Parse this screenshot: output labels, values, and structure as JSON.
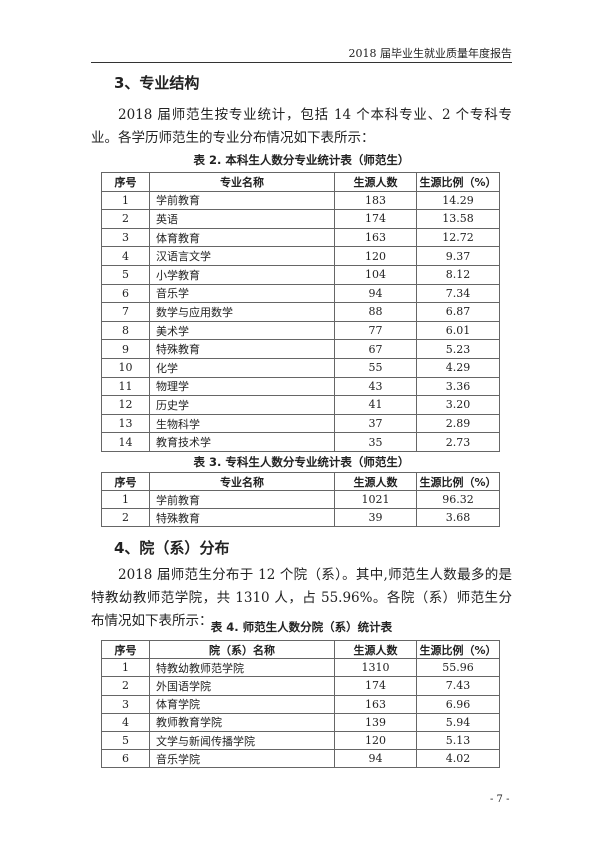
{
  "header": {
    "title": "2018 届毕业生就业质量年度报告"
  },
  "section3": {
    "heading": "3、专业结构",
    "paragraph": "2018 届师范生按专业统计，包括 14 个本科专业、2 个专科专业。各学历师范生的专业分布情况如下表所示："
  },
  "table2": {
    "caption": "表 2. 本科生人数分专业统计表（师范生）",
    "headers": [
      "序号",
      "专业名称",
      "生源人数",
      "生源比例（%）"
    ],
    "rows": [
      [
        "1",
        "学前教育",
        "183",
        "14.29"
      ],
      [
        "2",
        "英语",
        "174",
        "13.58"
      ],
      [
        "3",
        "体育教育",
        "163",
        "12.72"
      ],
      [
        "4",
        "汉语言文学",
        "120",
        "9.37"
      ],
      [
        "5",
        "小学教育",
        "104",
        "8.12"
      ],
      [
        "6",
        "音乐学",
        "94",
        "7.34"
      ],
      [
        "7",
        "数学与应用数学",
        "88",
        "6.87"
      ],
      [
        "8",
        "美术学",
        "77",
        "6.01"
      ],
      [
        "9",
        "特殊教育",
        "67",
        "5.23"
      ],
      [
        "10",
        "化学",
        "55",
        "4.29"
      ],
      [
        "11",
        "物理学",
        "43",
        "3.36"
      ],
      [
        "12",
        "历史学",
        "41",
        "3.20"
      ],
      [
        "13",
        "生物科学",
        "37",
        "2.89"
      ],
      [
        "14",
        "教育技术学",
        "35",
        "2.73"
      ]
    ]
  },
  "table3": {
    "caption": "表 3. 专科生人数分专业统计表（师范生）",
    "headers": [
      "序号",
      "专业名称",
      "生源人数",
      "生源比例（%）"
    ],
    "rows": [
      [
        "1",
        "学前教育",
        "1021",
        "96.32"
      ],
      [
        "2",
        "特殊教育",
        "39",
        "3.68"
      ]
    ]
  },
  "section4": {
    "heading": "4、院（系）分布",
    "paragraph": "2018 届师范生分布于 12 个院（系）。其中,师范生人数最多的是特教幼教师范学院，共 1310 人，占 55.96%。各院（系）师范生分布情况如下表所示："
  },
  "table4": {
    "caption": "表 4. 师范生人数分院（系）统计表",
    "headers": [
      "序号",
      "院（系）名称",
      "生源人数",
      "生源比例（%）"
    ],
    "rows": [
      [
        "1",
        "特教幼教师范学院",
        "1310",
        "55.96"
      ],
      [
        "2",
        "外国语学院",
        "174",
        "7.43"
      ],
      [
        "3",
        "体育学院",
        "163",
        "6.96"
      ],
      [
        "4",
        "教师教育学院",
        "139",
        "5.94"
      ],
      [
        "5",
        "文学与新闻传播学院",
        "120",
        "5.13"
      ],
      [
        "6",
        "音乐学院",
        "94",
        "4.02"
      ]
    ]
  },
  "footer": {
    "page_number": "- 7 -"
  }
}
